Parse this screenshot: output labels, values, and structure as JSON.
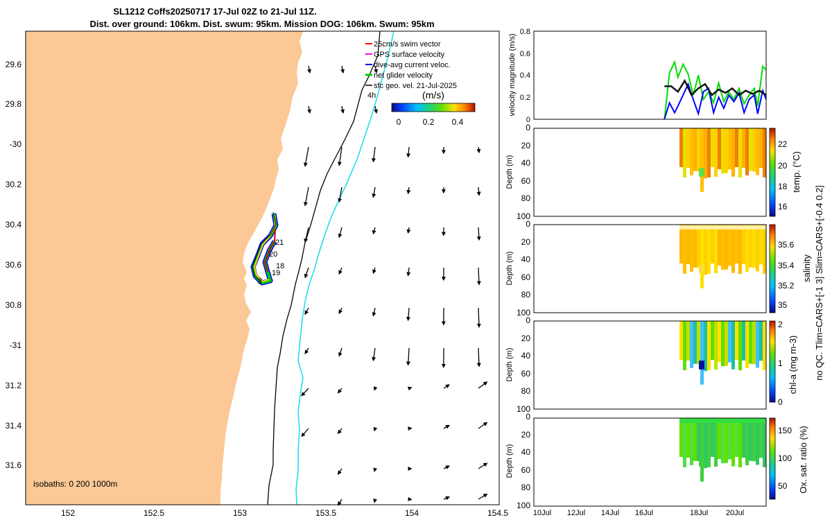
{
  "title_line1": "SL1212 Coffs20250717 17-Jul 02Z to 21-Jul 11Z.",
  "title_line2": "Dist. over ground: 106km. Dist. swum: 95km. Mission DOG: 106km. Swum: 95km",
  "colors": {
    "land": "#FBC896",
    "isobath_200": "#000000",
    "isobath_1000": "#22DDEE",
    "swim_vector": "#FF0000",
    "gps_velocity": "#FF00FF",
    "dive_avg_current": "#0000FF",
    "net_glider_velocity": "#00CC00",
    "sfc_geo_vel": "#000000"
  },
  "map": {
    "xlim": [
      151.75,
      154.5
    ],
    "ylim": [
      -31.8,
      -29.45
    ],
    "lon_ticks": [
      "152",
      "152.5",
      "153",
      "153.5",
      "154",
      "154.5"
    ],
    "lat_ticks": [
      "29.6",
      "29.8",
      "-30",
      "30.2",
      "30.4",
      "30.6",
      "30.8",
      "-31",
      "31.2",
      "31.4",
      "31.6"
    ],
    "legend": [
      "25cm/s swim vector",
      "GPS surface velocity",
      "dive-avg current veloc.",
      "net glider velocity",
      "sfc geo. vel. 21-Jul-2025"
    ],
    "colorbar_label": "(m/s)",
    "colorbar_ticks": [
      "0",
      "0.2",
      "0.4"
    ],
    "track_day_labels": [
      "21",
      "20",
      "18",
      "19",
      "2"
    ],
    "vector_scale_label": "4h",
    "isobaths_label": "isobaths: 0   200   1000m"
  },
  "chart_data": [
    {
      "type": "line",
      "panel": "velocity",
      "ylabel": "velocity magnitude (m/s)",
      "ylim": [
        0,
        0.8
      ],
      "yticks": [
        "0",
        "0.2",
        "0.4",
        "0.6",
        "0.8"
      ],
      "x_unit": "day of July 2025",
      "xlim": [
        9.5,
        23.2
      ],
      "series": [
        {
          "color": "#00DD00",
          "x": [
            17.2,
            17.5,
            17.8,
            18.0,
            18.3,
            18.6,
            18.9,
            19.2,
            19.5,
            19.8,
            20.1,
            20.4,
            20.7,
            21.0,
            21.3,
            21.6,
            21.9,
            22.2,
            22.5,
            22.7,
            23.0,
            23.2
          ],
          "y": [
            0.0,
            0.42,
            0.52,
            0.38,
            0.5,
            0.41,
            0.22,
            0.4,
            0.18,
            0.25,
            0.15,
            0.33,
            0.16,
            0.25,
            0.18,
            0.28,
            0.14,
            0.22,
            0.28,
            0.12,
            0.48,
            0.45
          ]
        },
        {
          "color": "#0000FF",
          "x": [
            17.2,
            17.5,
            17.8,
            18.0,
            18.3,
            18.6,
            18.9,
            19.2,
            19.5,
            19.8,
            20.1,
            20.4,
            20.7,
            21.0,
            21.3,
            21.6,
            21.9,
            22.2,
            22.5,
            22.7,
            23.0,
            23.2
          ],
          "y": [
            0.0,
            0.15,
            0.06,
            0.12,
            0.22,
            0.32,
            0.18,
            0.05,
            0.25,
            0.28,
            0.06,
            0.2,
            0.1,
            0.22,
            0.16,
            0.24,
            0.06,
            0.18,
            0.22,
            0.05,
            0.26,
            0.18
          ]
        },
        {
          "color": "#111111",
          "x": [
            17.2,
            17.6,
            18.0,
            18.4,
            18.8,
            19.2,
            19.6,
            20.0,
            20.4,
            20.8,
            21.2,
            21.6,
            22.0,
            22.4,
            22.8,
            23.2
          ],
          "y": [
            0.3,
            0.3,
            0.25,
            0.35,
            0.22,
            0.28,
            0.32,
            0.22,
            0.27,
            0.24,
            0.28,
            0.22,
            0.26,
            0.23,
            0.26,
            0.22
          ]
        }
      ]
    },
    {
      "type": "heatmap",
      "panel": "temperature",
      "ylabel": "Depth (m)",
      "ylim": [
        0,
        100
      ],
      "yticks": [
        "0",
        "20",
        "40",
        "60",
        "80",
        "100"
      ],
      "colorbar_label": "temp. (°C)",
      "clim": [
        15.5,
        23.3
      ],
      "colorbar_ticks": [
        "16",
        "18",
        "20",
        "22"
      ]
    },
    {
      "type": "heatmap",
      "panel": "salinity",
      "ylabel": "Depth (m)",
      "ylim": [
        0,
        100
      ],
      "yticks": [
        "0",
        "20",
        "40",
        "60",
        "80",
        "100"
      ],
      "colorbar_label": "salinity",
      "clim": [
        34.97,
        35.7
      ],
      "colorbar_ticks": [
        "35",
        "35.2",
        "35.4",
        "35.6"
      ]
    },
    {
      "type": "heatmap",
      "panel": "chlorophyll",
      "ylabel": "Depth (m)",
      "ylim": [
        0,
        100
      ],
      "yticks": [
        "0",
        "20",
        "40",
        "60",
        "80",
        "100"
      ],
      "colorbar_label": "chl-a (mg m-3)",
      "clim": [
        0,
        2
      ],
      "colorbar_ticks": [
        "0",
        "1",
        "2"
      ]
    },
    {
      "type": "heatmap",
      "panel": "oxygen",
      "ylabel": "Depth (m)",
      "ylim": [
        0,
        100
      ],
      "yticks": [
        "0",
        "20",
        "40",
        "60",
        "80",
        "100"
      ],
      "colorbar_label": "Ox. sat. ratio (%)",
      "clim": [
        20,
        175
      ],
      "colorbar_ticks": [
        "50",
        "100",
        "150"
      ],
      "xticks": [
        "10Jul",
        "12Jul",
        "14Jul",
        "16Jul",
        "18Jul",
        "20Jul"
      ]
    }
  ],
  "side_note": "no QC. Tlim=CARS+[-1 3] Slim=CARS+[-0.4 0.2]"
}
